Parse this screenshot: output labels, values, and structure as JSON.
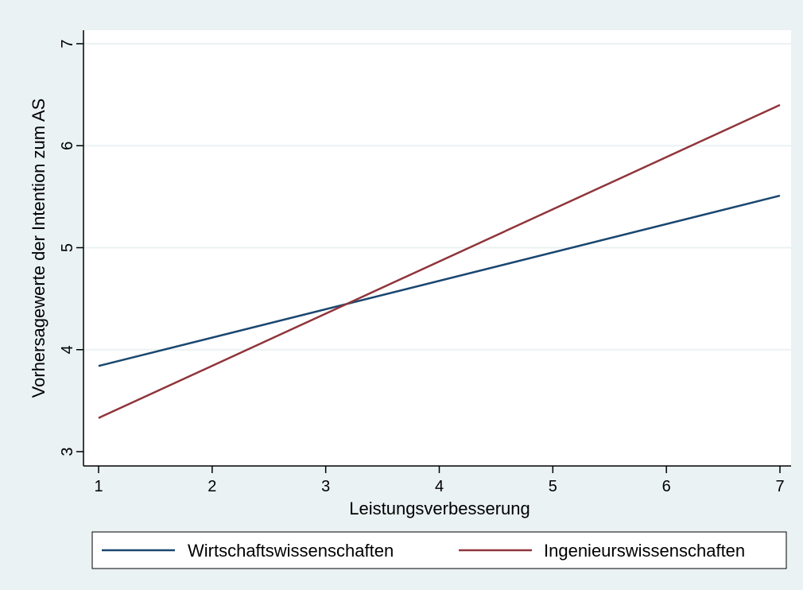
{
  "chart_data": {
    "type": "line",
    "title": "",
    "xlabel": "Leistungsverbesserung",
    "ylabel": "Vorhersagewerte der Intention zum AS",
    "xlim": [
      1,
      7
    ],
    "ylim": [
      3,
      7
    ],
    "x_ticks": [
      1,
      2,
      3,
      4,
      5,
      6,
      7
    ],
    "y_ticks": [
      3,
      4,
      5,
      6,
      7
    ],
    "grid": "horizontal",
    "legend_position": "bottom",
    "background_color": "#eaf2f3",
    "plot_background_color": "#ffffff",
    "grid_color": "#eaf2f3",
    "series": [
      {
        "name": "Wirtschaftswissenschaften",
        "color": "#1a476f",
        "x": [
          1,
          7
        ],
        "y": [
          3.84,
          5.51
        ]
      },
      {
        "name": "Ingenieurswissenschaften",
        "color": "#90353b",
        "x": [
          1,
          7
        ],
        "y": [
          3.33,
          6.4
        ]
      }
    ]
  }
}
